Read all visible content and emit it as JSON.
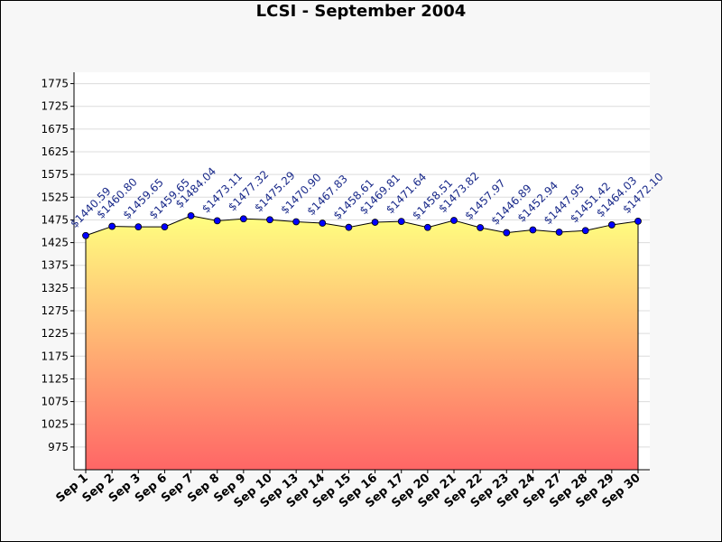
{
  "chart_data": {
    "type": "area",
    "title": "LCSI - September 2004",
    "xlabel": "",
    "ylabel": "",
    "ylim": [
      925,
      1800
    ],
    "yticks": [
      975,
      1025,
      1075,
      1125,
      1175,
      1225,
      1275,
      1325,
      1375,
      1425,
      1475,
      1525,
      1575,
      1625,
      1675,
      1725,
      1775
    ],
    "categories": [
      "Sep 1",
      "Sep 2",
      "Sep 3",
      "Sep 6",
      "Sep 7",
      "Sep 8",
      "Sep 9",
      "Sep 10",
      "Sep 13",
      "Sep 14",
      "Sep 15",
      "Sep 16",
      "Sep 17",
      "Sep 20",
      "Sep 21",
      "Sep 22",
      "Sep 23",
      "Sep 24",
      "Sep 27",
      "Sep 28",
      "Sep 29",
      "Sep 30"
    ],
    "values": [
      1440.59,
      1460.8,
      1459.65,
      1459.65,
      1484.04,
      1473.11,
      1477.32,
      1475.29,
      1470.9,
      1467.83,
      1458.61,
      1469.81,
      1471.64,
      1458.51,
      1473.82,
      1457.97,
      1446.89,
      1452.94,
      1447.95,
      1451.42,
      1464.03,
      1472.1
    ],
    "data_labels": [
      "$1440.59",
      "$1460.80",
      "$1459.65",
      "$1459.65",
      "$1484.04",
      "$1473.11",
      "$1477.32",
      "$1475.29",
      "$1470.90",
      "$1467.83",
      "$1458.61",
      "$1469.81",
      "$1471.64",
      "$1458.51",
      "$1473.82",
      "$1457.97",
      "$1446.89",
      "$1452.94",
      "$1447.95",
      "$1451.42",
      "$1464.03",
      "$1472.10"
    ],
    "grid": true,
    "colors": {
      "fill_top": "#ffff80",
      "fill_bottom": "#ff6666",
      "line": "#000000",
      "marker": "#0000ff",
      "label": "#1a2a8a"
    }
  }
}
